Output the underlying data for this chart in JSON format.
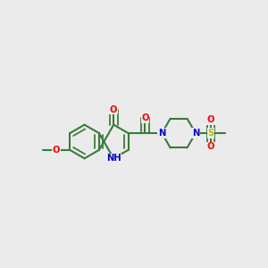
{
  "background_color": "#ebebeb",
  "bond_color": "#3a7a3a",
  "bond_width": 1.5,
  "atom_colors": {
    "O": "#ff0000",
    "N": "#0000cc",
    "S": "#b8b800",
    "C": "#3a7a3a",
    "H": "#3a7a3a"
  },
  "figsize": [
    3.0,
    3.0
  ],
  "dpi": 100
}
